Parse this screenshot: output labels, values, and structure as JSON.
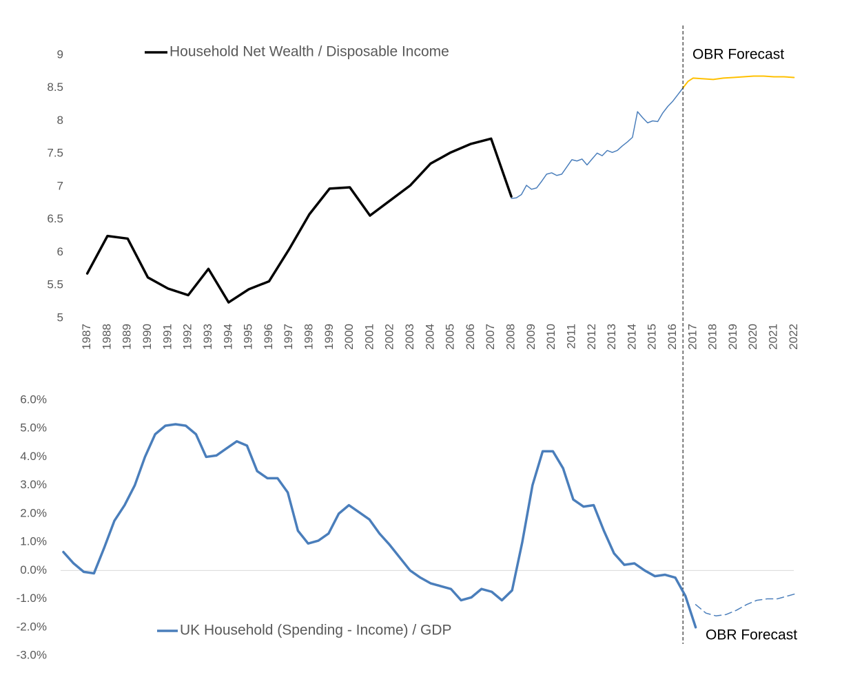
{
  "chart_data": [
    {
      "type": "line",
      "annotation": "OBR Forecast",
      "forecast_start": 2016.5,
      "xlim": [
        1986.5,
        2022.5
      ],
      "xticks": [
        1987,
        1988,
        1989,
        1990,
        1991,
        1992,
        1993,
        1994,
        1995,
        1996,
        1997,
        1998,
        1999,
        2000,
        2001,
        2002,
        2003,
        2004,
        2005,
        2006,
        2007,
        2008,
        2009,
        2010,
        2011,
        2012,
        2013,
        2014,
        2015,
        2016,
        2017,
        2018,
        2019,
        2020,
        2021,
        2022
      ],
      "ylim": [
        5,
        9
      ],
      "yticks": [
        5,
        5.5,
        6,
        6.5,
        7,
        7.5,
        8,
        8.5,
        9
      ],
      "series": [
        {
          "name": "Household Net Wealth / Disposable Income",
          "color": "#000000",
          "x": [
            1987,
            1988,
            1989,
            1990,
            1991,
            1992,
            1993,
            1994,
            1995,
            1996,
            1997,
            1998,
            1999,
            2000,
            2001,
            2002,
            2003,
            2004,
            2005,
            2006,
            2007,
            2008
          ],
          "values": [
            5.68,
            6.25,
            6.21,
            5.62,
            5.45,
            5.35,
            5.75,
            5.24,
            5.44,
            5.56,
            6.05,
            6.58,
            6.97,
            6.99,
            6.56,
            6.79,
            7.02,
            7.35,
            7.52,
            7.65,
            7.73,
            6.85
          ]
        },
        {
          "color": "#4a7ebb",
          "x": [
            2008,
            2008.25,
            2008.5,
            2008.75,
            2009,
            2009.25,
            2009.5,
            2009.75,
            2010,
            2010.25,
            2010.5,
            2010.75,
            2011,
            2011.25,
            2011.5,
            2011.75,
            2012,
            2012.25,
            2012.5,
            2012.75,
            2013,
            2013.25,
            2013.5,
            2013.75,
            2014,
            2014.25,
            2014.5,
            2014.75,
            2015,
            2015.25,
            2015.5,
            2015.75,
            2016,
            2016.25,
            2016.5
          ],
          "values": [
            6.82,
            6.83,
            6.88,
            7.02,
            6.96,
            6.98,
            7.08,
            7.19,
            7.21,
            7.17,
            7.19,
            7.3,
            7.41,
            7.39,
            7.42,
            7.33,
            7.42,
            7.51,
            7.47,
            7.55,
            7.52,
            7.55,
            7.62,
            7.68,
            7.75,
            8.14,
            8.05,
            7.97,
            8.0,
            7.99,
            8.12,
            8.22,
            8.3,
            8.4,
            8.5
          ]
        },
        {
          "color": "#ffc000",
          "x": [
            2016.5,
            2016.75,
            2017,
            2017.5,
            2018,
            2018.5,
            2019,
            2019.5,
            2020,
            2020.5,
            2021,
            2021.5,
            2022
          ],
          "values": [
            8.5,
            8.6,
            8.65,
            8.64,
            8.63,
            8.65,
            8.66,
            8.67,
            8.68,
            8.68,
            8.67,
            8.67,
            8.66
          ]
        }
      ]
    },
    {
      "type": "line",
      "annotation": "OBR Forecast",
      "ylim": [
        -3,
        6
      ],
      "yticks": [
        {
          "value": -3,
          "label": "-3.0%"
        },
        {
          "value": -2,
          "label": "-2.0%"
        },
        {
          "value": -1,
          "label": "-1.0%"
        },
        {
          "value": 0,
          "label": "0.0%"
        },
        {
          "value": 1,
          "label": "1.0%"
        },
        {
          "value": 2,
          "label": "2.0%"
        },
        {
          "value": 3,
          "label": "3.0%"
        },
        {
          "value": 4,
          "label": "4.0%"
        },
        {
          "value": 5,
          "label": "5.0%"
        },
        {
          "value": 6,
          "label": "6.0%"
        }
      ],
      "series": [
        {
          "name": "UK Household (Spending - Income) / GDP",
          "color": "#4a7ebb",
          "style": "solid",
          "values": [
            0.65,
            0.25,
            -0.05,
            -0.1,
            0.8,
            1.75,
            2.3,
            3.0,
            4.0,
            4.8,
            5.1,
            5.15,
            5.1,
            4.8,
            4.0,
            4.05,
            4.3,
            4.55,
            4.4,
            3.5,
            3.25,
            3.25,
            2.75,
            1.4,
            0.95,
            1.05,
            1.3,
            2.0,
            2.3,
            2.05,
            1.8,
            1.3,
            0.9,
            0.45,
            0.0,
            -0.25,
            -0.45,
            -0.55,
            -0.65,
            -1.05,
            -0.95,
            -0.65,
            -0.75,
            -1.05,
            -0.7,
            1.0,
            3.0,
            4.2,
            4.2,
            3.6,
            2.5,
            2.25,
            2.3,
            1.4,
            0.6,
            0.2,
            0.25,
            0.0,
            -0.2,
            -0.15,
            -0.25,
            -0.9,
            -2.0,
            null,
            null,
            null,
            null,
            null,
            null,
            null,
            null,
            null,
            null
          ]
        },
        {
          "color": "#4a7ebb",
          "style": "dashed",
          "values": [
            null,
            null,
            null,
            null,
            null,
            null,
            null,
            null,
            null,
            null,
            null,
            null,
            null,
            null,
            null,
            null,
            null,
            null,
            null,
            null,
            null,
            null,
            null,
            null,
            null,
            null,
            null,
            null,
            null,
            null,
            null,
            null,
            null,
            null,
            null,
            null,
            null,
            null,
            null,
            null,
            null,
            null,
            null,
            null,
            null,
            null,
            null,
            null,
            null,
            null,
            null,
            null,
            null,
            null,
            null,
            null,
            null,
            null,
            null,
            null,
            null,
            null,
            -1.2,
            -1.5,
            -1.6,
            -1.55,
            -1.4,
            -1.2,
            -1.05,
            -1.0,
            -1.0,
            -0.9,
            -0.8
          ]
        }
      ]
    }
  ]
}
